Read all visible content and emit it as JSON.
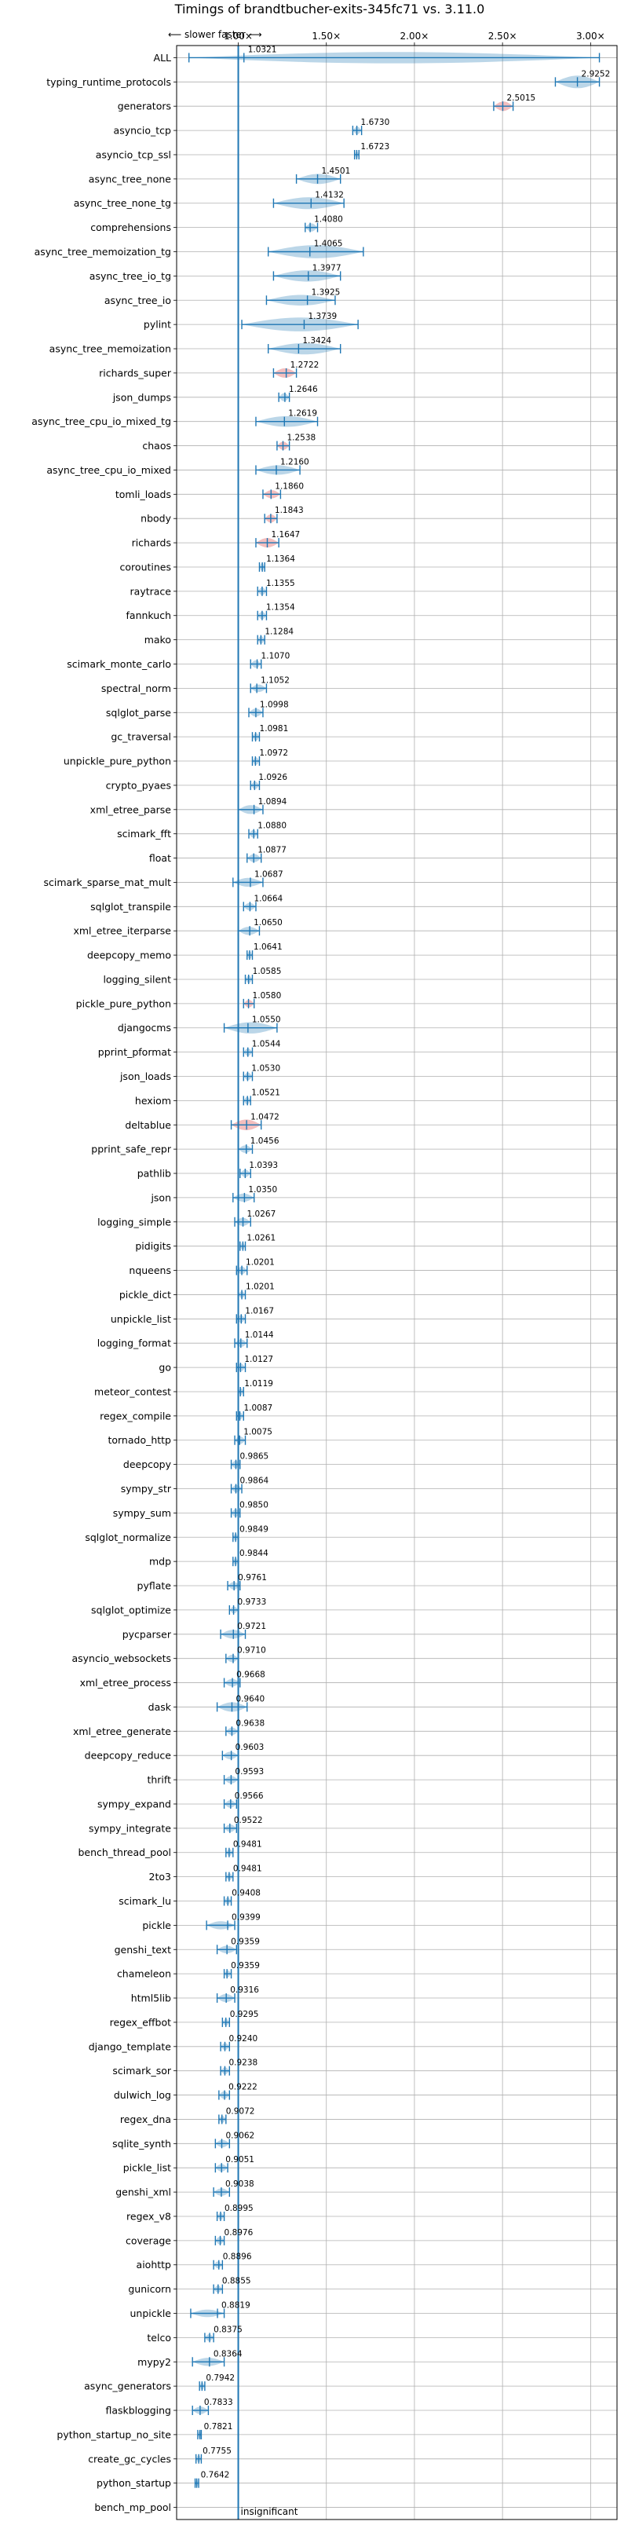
{
  "chart_data": {
    "type": "violin",
    "title": "Timings of brandtbucher-exits-345fc71 vs. 3.11.0",
    "direction_note": "⟵ slower    faster ⟶",
    "x_ticks": [
      1.0,
      1.5,
      2.0,
      2.5,
      3.0
    ],
    "x_tick_labels": [
      "1.00×",
      "1.50×",
      "2.00×",
      "2.50×",
      "3.00×"
    ],
    "xlim": [
      0.65,
      3.15
    ],
    "reference_line": 1.0,
    "reference_label": "insignificant",
    "grid": true,
    "colors": {
      "normal": "#1f77b4",
      "highlight": "#d62728",
      "reference": "#1f77b4"
    },
    "benchmarks": [
      {
        "name": "ALL",
        "value": 1.0321,
        "low": 0.72,
        "high": 3.05,
        "spread": 0.08,
        "highlight": false
      },
      {
        "name": "typing_runtime_protocols",
        "value": 2.9252,
        "low": 2.8,
        "high": 3.05,
        "spread": 0.1,
        "highlight": false
      },
      {
        "name": "generators",
        "value": 2.5015,
        "low": 2.45,
        "high": 2.56,
        "spread": 0.05,
        "highlight": true
      },
      {
        "name": "asyncio_tcp",
        "value": 1.673,
        "low": 1.65,
        "high": 1.7,
        "spread": 0.02,
        "highlight": false
      },
      {
        "name": "asyncio_tcp_ssl",
        "value": 1.6723,
        "low": 1.66,
        "high": 1.685,
        "spread": 0.01,
        "highlight": false
      },
      {
        "name": "async_tree_none",
        "value": 1.4501,
        "low": 1.33,
        "high": 1.58,
        "spread": 0.06,
        "highlight": false
      },
      {
        "name": "async_tree_none_tg",
        "value": 1.4132,
        "low": 1.2,
        "high": 1.6,
        "spread": 0.09,
        "highlight": false
      },
      {
        "name": "comprehensions",
        "value": 1.408,
        "low": 1.38,
        "high": 1.45,
        "spread": 0.03,
        "highlight": false
      },
      {
        "name": "async_tree_memoization_tg",
        "value": 1.4065,
        "low": 1.17,
        "high": 1.71,
        "spread": 0.11,
        "highlight": false
      },
      {
        "name": "async_tree_io_tg",
        "value": 1.3977,
        "low": 1.2,
        "high": 1.58,
        "spread": 0.08,
        "highlight": false
      },
      {
        "name": "async_tree_io",
        "value": 1.3925,
        "low": 1.16,
        "high": 1.55,
        "spread": 0.07,
        "highlight": false
      },
      {
        "name": "pylint",
        "value": 1.3739,
        "low": 1.02,
        "high": 1.68,
        "spread": 0.12,
        "highlight": false
      },
      {
        "name": "async_tree_memoization",
        "value": 1.3424,
        "low": 1.17,
        "high": 1.58,
        "spread": 0.08,
        "highlight": false
      },
      {
        "name": "richards_super",
        "value": 1.2722,
        "low": 1.2,
        "high": 1.33,
        "spread": 0.05,
        "highlight": true
      },
      {
        "name": "json_dumps",
        "value": 1.2646,
        "low": 1.23,
        "high": 1.29,
        "spread": 0.03,
        "highlight": false
      },
      {
        "name": "async_tree_cpu_io_mixed_tg",
        "value": 1.2619,
        "low": 1.1,
        "high": 1.45,
        "spread": 0.07,
        "highlight": false
      },
      {
        "name": "chaos",
        "value": 1.2538,
        "low": 1.22,
        "high": 1.29,
        "spread": 0.03,
        "highlight": true
      },
      {
        "name": "async_tree_cpu_io_mixed",
        "value": 1.216,
        "low": 1.1,
        "high": 1.35,
        "spread": 0.05,
        "highlight": false
      },
      {
        "name": "tomli_loads",
        "value": 1.186,
        "low": 1.14,
        "high": 1.24,
        "spread": 0.03,
        "highlight": true
      },
      {
        "name": "nbody",
        "value": 1.1843,
        "low": 1.15,
        "high": 1.22,
        "spread": 0.03,
        "highlight": true
      },
      {
        "name": "richards",
        "value": 1.1647,
        "low": 1.1,
        "high": 1.23,
        "spread": 0.05,
        "highlight": true
      },
      {
        "name": "coroutines",
        "value": 1.1364,
        "low": 1.12,
        "high": 1.15,
        "spread": 0.02,
        "highlight": false
      },
      {
        "name": "raytrace",
        "value": 1.1355,
        "low": 1.11,
        "high": 1.16,
        "spread": 0.02,
        "highlight": false
      },
      {
        "name": "fannkuch",
        "value": 1.1354,
        "low": 1.11,
        "high": 1.16,
        "spread": 0.02,
        "highlight": false
      },
      {
        "name": "mako",
        "value": 1.1284,
        "low": 1.11,
        "high": 1.15,
        "spread": 0.02,
        "highlight": false
      },
      {
        "name": "scimark_monte_carlo",
        "value": 1.107,
        "low": 1.07,
        "high": 1.13,
        "spread": 0.02,
        "highlight": false
      },
      {
        "name": "spectral_norm",
        "value": 1.1052,
        "low": 1.07,
        "high": 1.16,
        "spread": 0.02,
        "highlight": false
      },
      {
        "name": "sqlglot_parse",
        "value": 1.0998,
        "low": 1.06,
        "high": 1.14,
        "spread": 0.03,
        "highlight": false
      },
      {
        "name": "gc_traversal",
        "value": 1.0981,
        "low": 1.08,
        "high": 1.12,
        "spread": 0.02,
        "highlight": false
      },
      {
        "name": "unpickle_pure_python",
        "value": 1.0972,
        "low": 1.08,
        "high": 1.12,
        "spread": 0.02,
        "highlight": false
      },
      {
        "name": "crypto_pyaes",
        "value": 1.0926,
        "low": 1.07,
        "high": 1.12,
        "spread": 0.02,
        "highlight": false
      },
      {
        "name": "xml_etree_parse",
        "value": 1.0894,
        "low": 1.0,
        "high": 1.14,
        "spread": 0.04,
        "highlight": false
      },
      {
        "name": "scimark_fft",
        "value": 1.088,
        "low": 1.06,
        "high": 1.11,
        "spread": 0.02,
        "highlight": false
      },
      {
        "name": "float",
        "value": 1.0877,
        "low": 1.05,
        "high": 1.13,
        "spread": 0.03,
        "highlight": false
      },
      {
        "name": "scimark_sparse_mat_mult",
        "value": 1.0687,
        "low": 0.97,
        "high": 1.14,
        "spread": 0.04,
        "highlight": false
      },
      {
        "name": "sqlglot_transpile",
        "value": 1.0664,
        "low": 1.03,
        "high": 1.1,
        "spread": 0.02,
        "highlight": false
      },
      {
        "name": "xml_etree_iterparse",
        "value": 1.065,
        "low": 1.0,
        "high": 1.12,
        "spread": 0.03,
        "highlight": false
      },
      {
        "name": "deepcopy_memo",
        "value": 1.0641,
        "low": 1.05,
        "high": 1.08,
        "spread": 0.02,
        "highlight": false
      },
      {
        "name": "logging_silent",
        "value": 1.0585,
        "low": 1.04,
        "high": 1.08,
        "spread": 0.02,
        "highlight": false
      },
      {
        "name": "pickle_pure_python",
        "value": 1.058,
        "low": 1.03,
        "high": 1.09,
        "spread": 0.02,
        "highlight": true
      },
      {
        "name": "djangocms",
        "value": 1.055,
        "low": 0.92,
        "high": 1.22,
        "spread": 0.08,
        "highlight": false
      },
      {
        "name": "pprint_pformat",
        "value": 1.0544,
        "low": 1.03,
        "high": 1.08,
        "spread": 0.02,
        "highlight": false
      },
      {
        "name": "json_loads",
        "value": 1.053,
        "low": 1.03,
        "high": 1.08,
        "spread": 0.02,
        "highlight": false
      },
      {
        "name": "hexiom",
        "value": 1.0521,
        "low": 1.03,
        "high": 1.07,
        "spread": 0.02,
        "highlight": false
      },
      {
        "name": "deltablue",
        "value": 1.0472,
        "low": 0.96,
        "high": 1.13,
        "spread": 0.07,
        "highlight": true
      },
      {
        "name": "pprint_safe_repr",
        "value": 1.0456,
        "low": 1.0,
        "high": 1.08,
        "spread": 0.02,
        "highlight": false
      },
      {
        "name": "pathlib",
        "value": 1.0393,
        "low": 1.01,
        "high": 1.07,
        "spread": 0.02,
        "highlight": false
      },
      {
        "name": "json",
        "value": 1.035,
        "low": 0.97,
        "high": 1.09,
        "spread": 0.03,
        "highlight": false
      },
      {
        "name": "logging_simple",
        "value": 1.0267,
        "low": 0.98,
        "high": 1.07,
        "spread": 0.03,
        "highlight": false
      },
      {
        "name": "pidigits",
        "value": 1.0261,
        "low": 1.01,
        "high": 1.04,
        "spread": 0.01,
        "highlight": false
      },
      {
        "name": "nqueens",
        "value": 1.0201,
        "low": 0.99,
        "high": 1.05,
        "spread": 0.02,
        "highlight": false
      },
      {
        "name": "pickle_dict",
        "value": 1.0201,
        "low": 1.0,
        "high": 1.04,
        "spread": 0.01,
        "highlight": false
      },
      {
        "name": "unpickle_list",
        "value": 1.0167,
        "low": 0.99,
        "high": 1.04,
        "spread": 0.02,
        "highlight": false
      },
      {
        "name": "logging_format",
        "value": 1.0144,
        "low": 0.98,
        "high": 1.05,
        "spread": 0.02,
        "highlight": false
      },
      {
        "name": "go",
        "value": 1.0127,
        "low": 0.99,
        "high": 1.04,
        "spread": 0.02,
        "highlight": false
      },
      {
        "name": "meteor_contest",
        "value": 1.0119,
        "low": 1.0,
        "high": 1.03,
        "spread": 0.01,
        "highlight": false
      },
      {
        "name": "regex_compile",
        "value": 1.0087,
        "low": 0.99,
        "high": 1.03,
        "spread": 0.01,
        "highlight": false
      },
      {
        "name": "tornado_http",
        "value": 1.0075,
        "low": 0.98,
        "high": 1.04,
        "spread": 0.02,
        "highlight": false
      },
      {
        "name": "deepcopy",
        "value": 0.9865,
        "low": 0.96,
        "high": 1.01,
        "spread": 0.02,
        "highlight": false
      },
      {
        "name": "sympy_str",
        "value": 0.9864,
        "low": 0.96,
        "high": 1.02,
        "spread": 0.02,
        "highlight": false
      },
      {
        "name": "sympy_sum",
        "value": 0.985,
        "low": 0.96,
        "high": 1.01,
        "spread": 0.02,
        "highlight": false
      },
      {
        "name": "sqlglot_normalize",
        "value": 0.9849,
        "low": 0.97,
        "high": 1.0,
        "spread": 0.01,
        "highlight": false
      },
      {
        "name": "mdp",
        "value": 0.9844,
        "low": 0.97,
        "high": 1.0,
        "spread": 0.01,
        "highlight": false
      },
      {
        "name": "pyflate",
        "value": 0.9761,
        "low": 0.94,
        "high": 1.01,
        "spread": 0.02,
        "highlight": false
      },
      {
        "name": "sqlglot_optimize",
        "value": 0.9733,
        "low": 0.95,
        "high": 1.0,
        "spread": 0.01,
        "highlight": false
      },
      {
        "name": "pycparser",
        "value": 0.9721,
        "low": 0.9,
        "high": 1.04,
        "spread": 0.04,
        "highlight": false
      },
      {
        "name": "asyncio_websockets",
        "value": 0.971,
        "low": 0.93,
        "high": 1.0,
        "spread": 0.02,
        "highlight": false
      },
      {
        "name": "xml_etree_process",
        "value": 0.9668,
        "low": 0.92,
        "high": 1.01,
        "spread": 0.02,
        "highlight": false
      },
      {
        "name": "dask",
        "value": 0.964,
        "low": 0.88,
        "high": 1.05,
        "spread": 0.05,
        "highlight": false
      },
      {
        "name": "xml_etree_generate",
        "value": 0.9638,
        "low": 0.93,
        "high": 1.0,
        "spread": 0.02,
        "highlight": false
      },
      {
        "name": "deepcopy_reduce",
        "value": 0.9603,
        "low": 0.91,
        "high": 1.0,
        "spread": 0.02,
        "highlight": false
      },
      {
        "name": "thrift",
        "value": 0.9593,
        "low": 0.92,
        "high": 1.0,
        "spread": 0.02,
        "highlight": false
      },
      {
        "name": "sympy_expand",
        "value": 0.9566,
        "low": 0.92,
        "high": 0.99,
        "spread": 0.02,
        "highlight": false
      },
      {
        "name": "sympy_integrate",
        "value": 0.9522,
        "low": 0.92,
        "high": 0.99,
        "spread": 0.02,
        "highlight": false
      },
      {
        "name": "bench_thread_pool",
        "value": 0.9481,
        "low": 0.93,
        "high": 0.97,
        "spread": 0.01,
        "highlight": false
      },
      {
        "name": "2to3",
        "value": 0.9481,
        "low": 0.93,
        "high": 0.97,
        "spread": 0.01,
        "highlight": false
      },
      {
        "name": "scimark_lu",
        "value": 0.9408,
        "low": 0.92,
        "high": 0.96,
        "spread": 0.01,
        "highlight": false
      },
      {
        "name": "pickle",
        "value": 0.9399,
        "low": 0.82,
        "high": 0.98,
        "spread": 0.03,
        "highlight": false
      },
      {
        "name": "genshi_text",
        "value": 0.9359,
        "low": 0.88,
        "high": 0.99,
        "spread": 0.02,
        "highlight": false
      },
      {
        "name": "chameleon",
        "value": 0.9359,
        "low": 0.92,
        "high": 0.96,
        "spread": 0.01,
        "highlight": false
      },
      {
        "name": "html5lib",
        "value": 0.9316,
        "low": 0.88,
        "high": 0.98,
        "spread": 0.03,
        "highlight": false
      },
      {
        "name": "regex_effbot",
        "value": 0.9295,
        "low": 0.91,
        "high": 0.95,
        "spread": 0.01,
        "highlight": false
      },
      {
        "name": "django_template",
        "value": 0.924,
        "low": 0.9,
        "high": 0.95,
        "spread": 0.01,
        "highlight": false
      },
      {
        "name": "scimark_sor",
        "value": 0.9238,
        "low": 0.9,
        "high": 0.95,
        "spread": 0.01,
        "highlight": false
      },
      {
        "name": "dulwich_log",
        "value": 0.9222,
        "low": 0.89,
        "high": 0.95,
        "spread": 0.02,
        "highlight": false
      },
      {
        "name": "regex_dna",
        "value": 0.9072,
        "low": 0.89,
        "high": 0.93,
        "spread": 0.01,
        "highlight": false
      },
      {
        "name": "sqlite_synth",
        "value": 0.9062,
        "low": 0.87,
        "high": 0.95,
        "spread": 0.02,
        "highlight": false
      },
      {
        "name": "pickle_list",
        "value": 0.9051,
        "low": 0.87,
        "high": 0.94,
        "spread": 0.02,
        "highlight": false
      },
      {
        "name": "genshi_xml",
        "value": 0.9038,
        "low": 0.86,
        "high": 0.95,
        "spread": 0.02,
        "highlight": false
      },
      {
        "name": "regex_v8",
        "value": 0.8995,
        "low": 0.88,
        "high": 0.92,
        "spread": 0.01,
        "highlight": false
      },
      {
        "name": "coverage",
        "value": 0.8976,
        "low": 0.87,
        "high": 0.92,
        "spread": 0.02,
        "highlight": false
      },
      {
        "name": "aiohttp",
        "value": 0.8896,
        "low": 0.86,
        "high": 0.91,
        "spread": 0.01,
        "highlight": false
      },
      {
        "name": "gunicorn",
        "value": 0.8855,
        "low": 0.86,
        "high": 0.91,
        "spread": 0.01,
        "highlight": false
      },
      {
        "name": "unpickle",
        "value": 0.8819,
        "low": 0.73,
        "high": 0.92,
        "spread": 0.02,
        "highlight": false
      },
      {
        "name": "telco",
        "value": 0.8375,
        "low": 0.81,
        "high": 0.86,
        "spread": 0.01,
        "highlight": false
      },
      {
        "name": "mypy2",
        "value": 0.8364,
        "low": 0.74,
        "high": 0.92,
        "spread": 0.03,
        "highlight": false
      },
      {
        "name": "async_generators",
        "value": 0.7942,
        "low": 0.78,
        "high": 0.81,
        "spread": 0.01,
        "highlight": false
      },
      {
        "name": "flaskblogging",
        "value": 0.7833,
        "low": 0.74,
        "high": 0.83,
        "spread": 0.02,
        "highlight": false
      },
      {
        "name": "python_startup_no_site",
        "value": 0.7821,
        "low": 0.77,
        "high": 0.79,
        "spread": 0.01,
        "highlight": false
      },
      {
        "name": "create_gc_cycles",
        "value": 0.7755,
        "low": 0.76,
        "high": 0.79,
        "spread": 0.01,
        "highlight": false
      },
      {
        "name": "python_startup",
        "value": 0.7642,
        "low": 0.755,
        "high": 0.775,
        "spread": 0.01,
        "highlight": false
      },
      {
        "name": "bench_mp_pool",
        "value": null,
        "low": null,
        "high": null,
        "spread": 0,
        "highlight": false
      }
    ]
  }
}
